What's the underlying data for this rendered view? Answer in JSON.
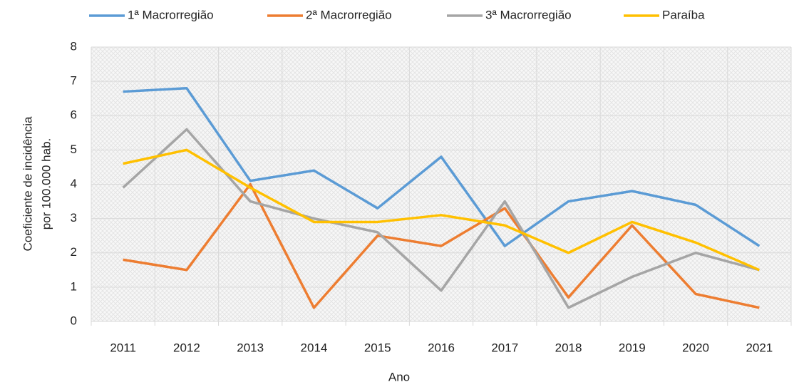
{
  "chart_data": {
    "type": "line",
    "x_label": "Ano",
    "y_label": [
      "Coeficiente de incidência",
      "por 100.000 hab."
    ],
    "categories": [
      "2011",
      "2012",
      "2013",
      "2014",
      "2015",
      "2016",
      "2017",
      "2018",
      "2019",
      "2020",
      "2021"
    ],
    "series": [
      {
        "name": "1ª Macrorregião",
        "color": "#5b9bd5",
        "values": [
          6.7,
          6.8,
          4.1,
          4.4,
          3.3,
          4.8,
          2.2,
          3.5,
          3.8,
          3.4,
          2.2
        ]
      },
      {
        "name": "2ª Macrorregião",
        "color": "#ed7d31",
        "values": [
          1.8,
          1.5,
          4.0,
          0.4,
          2.5,
          2.2,
          3.3,
          0.7,
          2.8,
          0.8,
          0.4
        ]
      },
      {
        "name": "3ª Macrorregião",
        "color": "#a5a5a5",
        "values": [
          3.9,
          5.6,
          3.5,
          3.0,
          2.6,
          0.9,
          3.5,
          0.4,
          1.3,
          2.0,
          1.5
        ]
      },
      {
        "name": "Paraíba",
        "color": "#ffc000",
        "values": [
          4.6,
          5.0,
          3.9,
          2.9,
          2.9,
          3.1,
          2.8,
          2.0,
          2.9,
          2.3,
          1.5
        ]
      }
    ],
    "ylim": [
      0,
      8
    ],
    "yticks": [
      0,
      1,
      2,
      3,
      4,
      5,
      6,
      7,
      8
    ],
    "grid": true,
    "legend": "top"
  }
}
